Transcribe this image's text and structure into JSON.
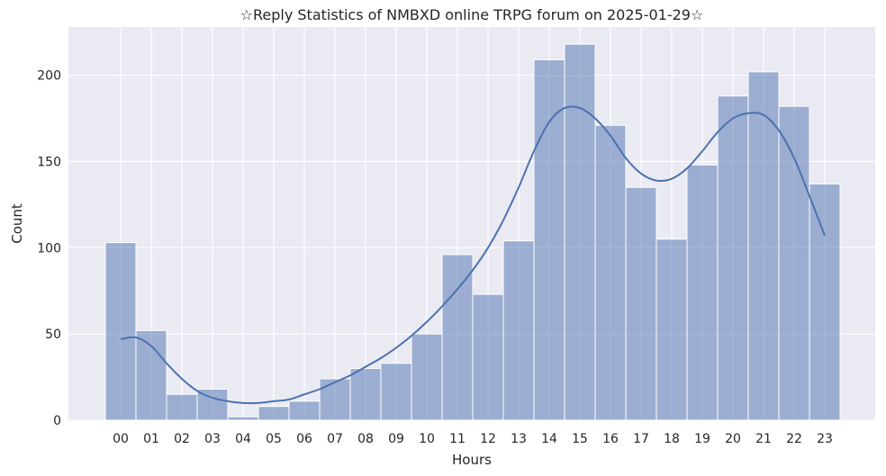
{
  "chart_data": {
    "type": "bar",
    "title": "☆Reply Statistics of NMBXD online TRPG forum on 2025-01-29☆",
    "xlabel": "Hours",
    "ylabel": "Count",
    "categories": [
      "00",
      "01",
      "02",
      "03",
      "04",
      "05",
      "06",
      "07",
      "08",
      "09",
      "10",
      "11",
      "12",
      "13",
      "14",
      "15",
      "16",
      "17",
      "18",
      "19",
      "20",
      "21",
      "22",
      "23"
    ],
    "values": [
      103,
      52,
      15,
      18,
      2,
      8,
      11,
      24,
      30,
      33,
      50,
      96,
      73,
      104,
      209,
      218,
      171,
      135,
      105,
      148,
      188,
      202,
      182,
      137
    ],
    "kde": [
      [
        0.0,
        47
      ],
      [
        0.5,
        48
      ],
      [
        1.0,
        43
      ],
      [
        1.5,
        33
      ],
      [
        2.0,
        24
      ],
      [
        2.5,
        17
      ],
      [
        3.0,
        13
      ],
      [
        3.5,
        11
      ],
      [
        4.0,
        10
      ],
      [
        4.5,
        10
      ],
      [
        5.0,
        11
      ],
      [
        5.5,
        12
      ],
      [
        6.0,
        15
      ],
      [
        6.5,
        18
      ],
      [
        7.0,
        22
      ],
      [
        7.5,
        26
      ],
      [
        8.0,
        31
      ],
      [
        8.5,
        36
      ],
      [
        9.0,
        42
      ],
      [
        9.5,
        49
      ],
      [
        10.0,
        57
      ],
      [
        10.5,
        66
      ],
      [
        11.0,
        76
      ],
      [
        11.5,
        87
      ],
      [
        12.0,
        100
      ],
      [
        12.5,
        116
      ],
      [
        13.0,
        135
      ],
      [
        13.5,
        156
      ],
      [
        14.0,
        173
      ],
      [
        14.5,
        181
      ],
      [
        15.0,
        181
      ],
      [
        15.5,
        175
      ],
      [
        16.0,
        165
      ],
      [
        16.5,
        152
      ],
      [
        17.0,
        143
      ],
      [
        17.5,
        139
      ],
      [
        18.0,
        140
      ],
      [
        18.5,
        146
      ],
      [
        19.0,
        156
      ],
      [
        19.5,
        167
      ],
      [
        20.0,
        175
      ],
      [
        20.5,
        178
      ],
      [
        21.0,
        177
      ],
      [
        21.5,
        168
      ],
      [
        22.0,
        152
      ],
      [
        22.5,
        130
      ],
      [
        23.0,
        107
      ]
    ],
    "ylim": [
      0,
      228
    ],
    "yticks": [
      0,
      50,
      100,
      150,
      200
    ],
    "grid": true,
    "colors": {
      "background": "#eaeaf2",
      "bar_fill": "#4c72b0",
      "kde_line": "#4c72b0",
      "grid": "#ffffff"
    }
  }
}
